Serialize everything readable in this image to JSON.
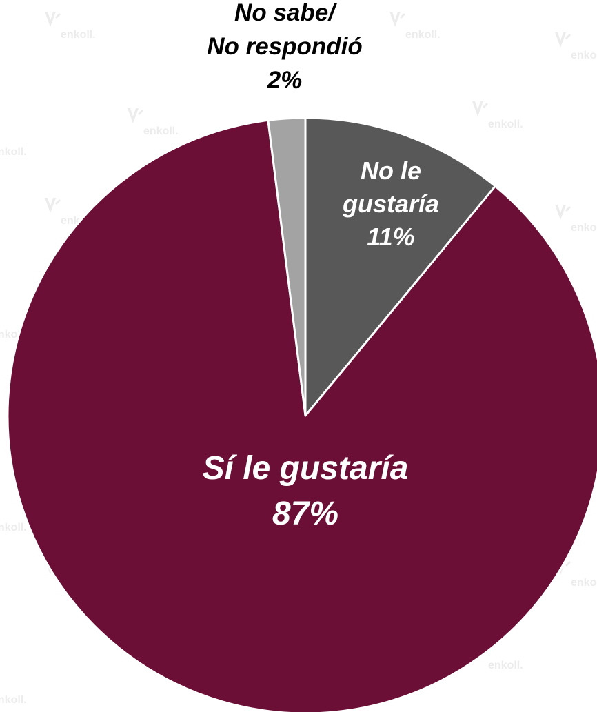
{
  "watermark": {
    "text": "enkoll."
  },
  "chart_data": {
    "type": "pie",
    "slices": [
      {
        "label_lines": [
          "No le",
          "gustaría"
        ],
        "value": 11,
        "value_label": "11%",
        "color": "#585858",
        "text_color": "#ffffff"
      },
      {
        "label_lines": [
          "Sí le gustaría"
        ],
        "value": 87,
        "value_label": "87%",
        "color": "#6b0f36",
        "text_color": "#ffffff"
      },
      {
        "label_lines": [
          "No sabe/",
          "No respondió"
        ],
        "value": 2,
        "value_label": "2%",
        "color": "#a3a3a3",
        "text_color": "#000000"
      }
    ],
    "start_angle_deg": 0,
    "direction": "clockwise"
  }
}
